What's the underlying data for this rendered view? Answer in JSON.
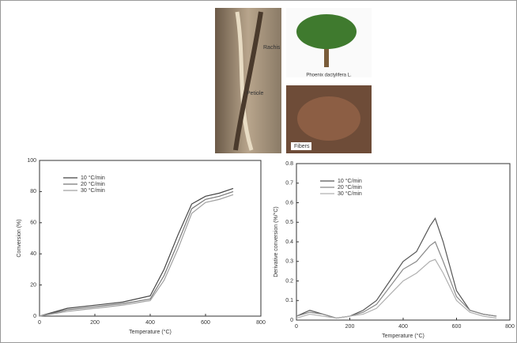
{
  "photos": {
    "stem_labels": [
      "Rachis",
      "Petiole"
    ],
    "tree_label": "Phoenix dactylifera L.",
    "fiber_label": "Fibers"
  },
  "chart_data": [
    {
      "type": "line",
      "xlabel": "Temperature (°C)",
      "ylabel": "Conversion (%)",
      "x": [
        0,
        100,
        200,
        300,
        400,
        450,
        500,
        550,
        600,
        650,
        700
      ],
      "series": [
        {
          "name": "10 °C/min",
          "color": "#444444",
          "values": [
            0,
            5,
            7,
            9,
            13,
            30,
            52,
            72,
            77,
            79,
            82
          ]
        },
        {
          "name": "20 °C/min",
          "color": "#777777",
          "values": [
            0,
            4,
            6,
            8,
            11,
            26,
            47,
            69,
            75,
            77,
            80
          ]
        },
        {
          "name": "30 °C/min",
          "color": "#a0a0a0",
          "values": [
            0,
            3,
            5,
            7,
            10,
            23,
            43,
            66,
            73,
            75,
            78
          ]
        }
      ],
      "xlim": [
        0,
        800
      ],
      "xticks": [
        0,
        200,
        400,
        600,
        800
      ],
      "ylim": [
        0,
        100
      ],
      "yticks": [
        0,
        20,
        40,
        60,
        80,
        100
      ]
    },
    {
      "type": "line",
      "xlabel": "Temperature (°C)",
      "ylabel": "Derivative conversion (%/°C)",
      "x": [
        0,
        50,
        100,
        150,
        200,
        250,
        300,
        350,
        400,
        450,
        500,
        520,
        550,
        600,
        650,
        700,
        750
      ],
      "series": [
        {
          "name": "10 °C/min",
          "color": "#555555",
          "values": [
            0.02,
            0.05,
            0.03,
            0.01,
            0.02,
            0.05,
            0.1,
            0.2,
            0.3,
            0.35,
            0.48,
            0.52,
            0.4,
            0.15,
            0.05,
            0.03,
            0.02
          ]
        },
        {
          "name": "20 °C/min",
          "color": "#888888",
          "values": [
            0.02,
            0.04,
            0.03,
            0.01,
            0.02,
            0.04,
            0.08,
            0.17,
            0.26,
            0.3,
            0.38,
            0.4,
            0.3,
            0.12,
            0.05,
            0.03,
            0.02
          ]
        },
        {
          "name": "30 °C/min",
          "color": "#b0b0b0",
          "values": [
            0.01,
            0.03,
            0.02,
            0.01,
            0.02,
            0.03,
            0.06,
            0.13,
            0.2,
            0.24,
            0.3,
            0.31,
            0.24,
            0.1,
            0.04,
            0.02,
            0.01
          ]
        }
      ],
      "xlim": [
        0,
        800
      ],
      "xticks": [
        0,
        200,
        400,
        600,
        800
      ],
      "ylim": [
        0,
        0.8
      ],
      "yticks": [
        0,
        0.1,
        0.2,
        0.3,
        0.4,
        0.5,
        0.6,
        0.7,
        0.8
      ]
    }
  ]
}
